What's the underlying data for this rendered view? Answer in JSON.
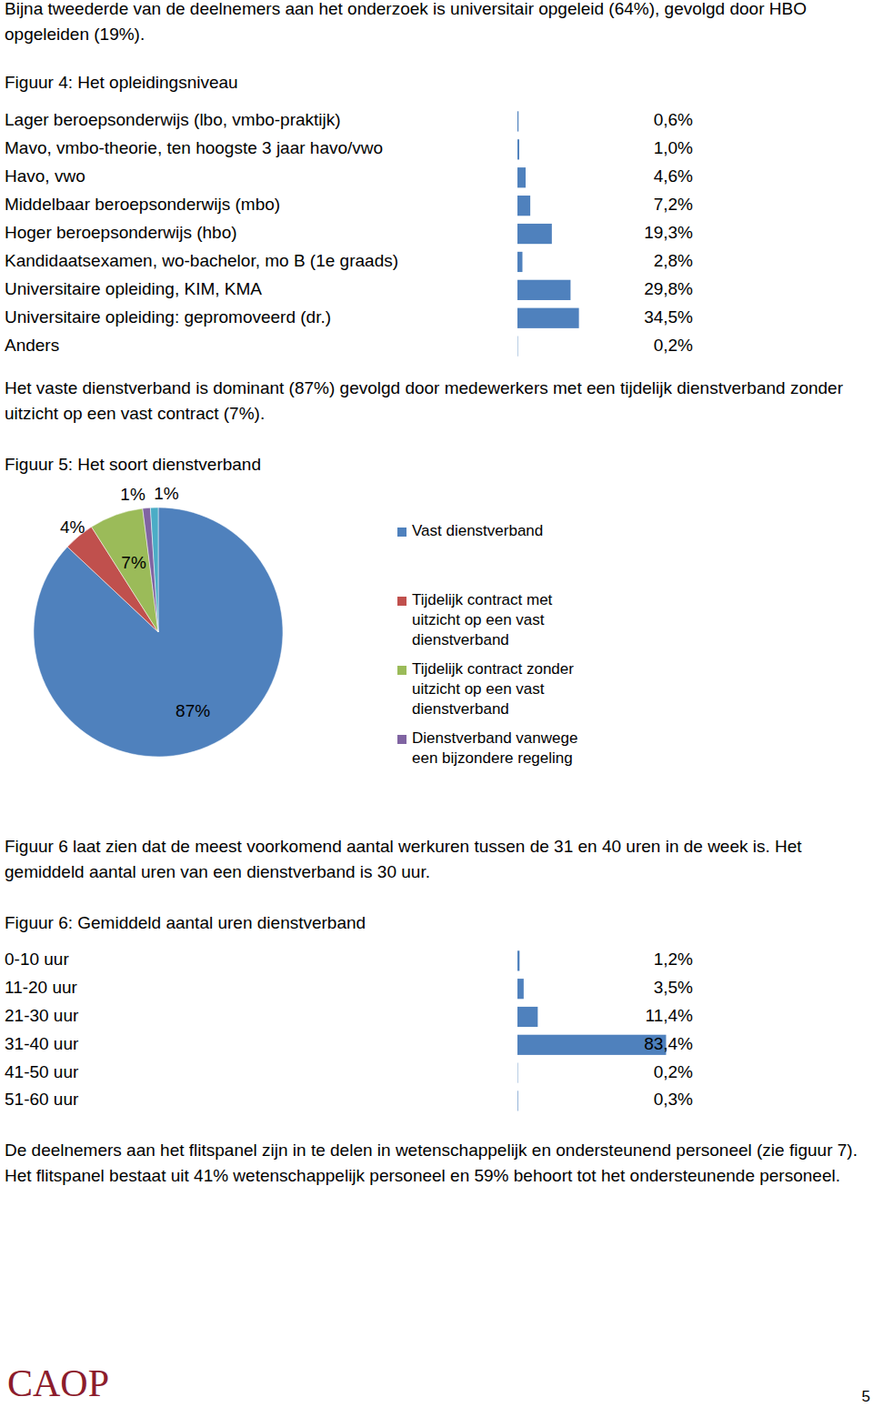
{
  "document": {
    "paragraphs": [
      "Bijna tweederde van de deelnemers aan het onderzoek is universitair opgeleid (64%), gevolgd door HBO opgeleiden (19%).",
      "Het vaste dienstverband is dominant (87%) gevolgd door medewerkers met een tijdelijk dienstverband zonder uitzicht op een vast contract (7%).",
      "Figuur 6 laat zien dat de meest voorkomend aantal werkuren tussen de 31 en 40 uren in de week is. Het gemiddeld aantal uren van een dienstverband is 30 uur.",
      "De deelnemers aan het flitspanel zijn in te delen in wetenschappelijk en ondersteunend personeel (zie figuur 7). Het flitspanel bestaat uit 41% wetenschappelijk personeel en 59% behoort tot het ondersteunende personeel."
    ],
    "footer": {
      "logo": "CAOP",
      "page": "5"
    }
  },
  "chart_data": [
    {
      "type": "bar",
      "title": "Figuur 4: Het opleidingsniveau",
      "orientation": "horizontal",
      "categories": [
        "Lager beroepsonderwijs (lbo, vmbo-praktijk)",
        "Mavo, vmbo-theorie, ten hoogste 3 jaar havo/vwo",
        "Havo, vwo",
        "Middelbaar beroepsonderwijs (mbo)",
        "Hoger beroepsonderwijs (hbo)",
        "Kandidaatsexamen, wo-bachelor, mo B (1e graads)",
        "Universitaire opleiding, KIM, KMA",
        "Universitaire opleiding: gepromoveerd (dr.)",
        "Anders"
      ],
      "values": [
        0.6,
        1.0,
        4.6,
        7.2,
        19.3,
        2.8,
        29.8,
        34.5,
        0.2
      ],
      "value_labels": [
        "0,6%",
        "1,0%",
        "4,6%",
        "7,2%",
        "19,3%",
        "2,8%",
        "29,8%",
        "34,5%",
        "0,2%"
      ],
      "color": "#4f81bd",
      "xlim": [
        0,
        100
      ],
      "data_labels": true,
      "tick_labels": "y",
      "grid": false
    },
    {
      "type": "pie",
      "title": "Figuur 5: Het soort dienstverband",
      "categories": [
        "Vast dienstverband",
        "Tijdelijk contract met uitzicht op een vast dienstverband",
        "Tijdelijk contract zonder uitzicht op een vast dienstverband",
        "Dienstverband vanwege een bijzondere regeling",
        null
      ],
      "values": [
        87,
        4,
        7,
        1,
        1
      ],
      "value_labels": [
        "87%",
        "4%",
        "7%",
        "1%",
        "1%"
      ],
      "colors": [
        "#4f81bd",
        "#c0504d",
        "#9bbb59",
        "#8064a2",
        "#4bacc6"
      ],
      "data_labels": true,
      "legend": "right"
    },
    {
      "type": "bar",
      "title": "Figuur 6: Gemiddeld aantal uren dienstverband",
      "orientation": "horizontal",
      "categories": [
        "0-10 uur",
        "11-20 uur",
        "21-30 uur",
        "31-40 uur",
        "41-50 uur",
        "51-60 uur"
      ],
      "values": [
        1.2,
        3.5,
        11.4,
        83.4,
        0.2,
        0.3
      ],
      "value_labels": [
        "1,2%",
        "3,5%",
        "11,4%",
        "83,4%",
        "0,2%",
        "0,3%"
      ],
      "color": "#4f81bd",
      "xlim": [
        0,
        100
      ],
      "data_labels": true,
      "tick_labels": "y",
      "grid": false
    }
  ]
}
